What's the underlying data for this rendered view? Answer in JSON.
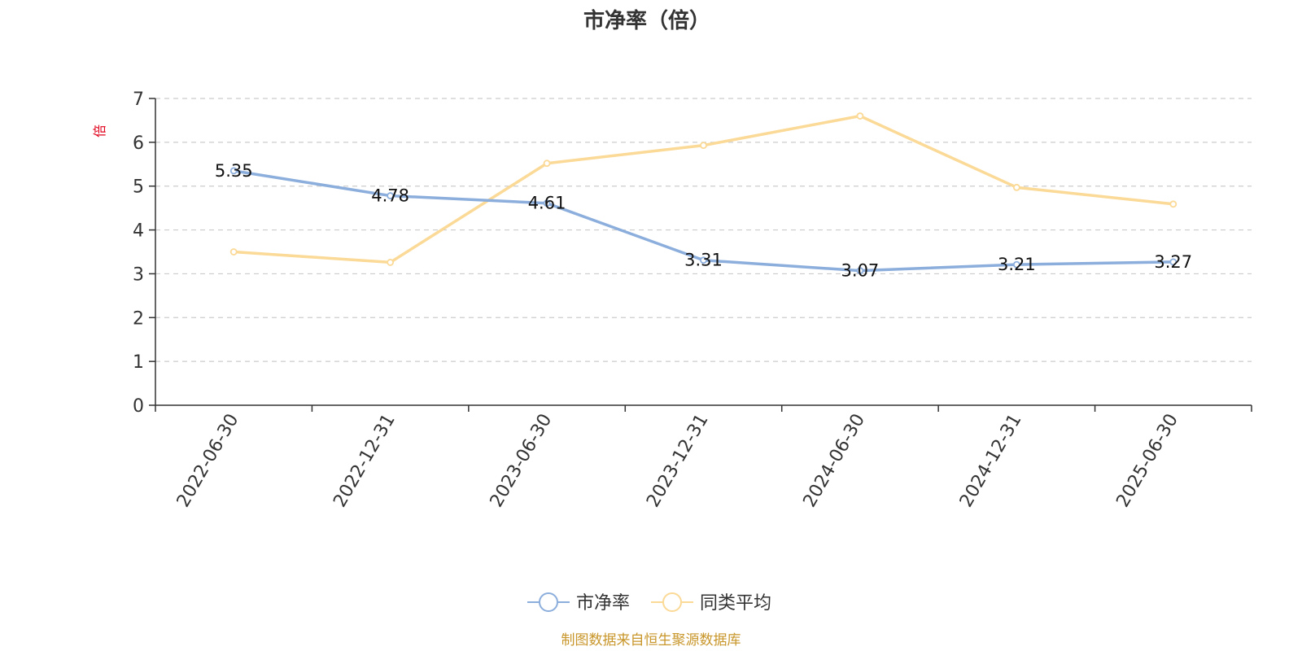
{
  "chart_data": {
    "type": "line",
    "title": "市净率（倍）",
    "ylabel": "倍",
    "xlabel": "",
    "categories": [
      "2022-06-30",
      "2022-12-31",
      "2023-06-30",
      "2023-12-31",
      "2024-06-30",
      "2024-12-31",
      "2025-06-30"
    ],
    "ylim": [
      0,
      7
    ],
    "yticks": [
      "0",
      "1",
      "2",
      "3",
      "4",
      "5",
      "6",
      "7"
    ],
    "grid": true,
    "legend_position": "bottom-center",
    "series": [
      {
        "name": "市净率",
        "color": "#8caedc",
        "values": [
          5.35,
          4.78,
          4.61,
          3.31,
          3.07,
          3.21,
          3.27
        ],
        "labels": [
          "5.35",
          "4.78",
          "4.61",
          "3.31",
          "3.07",
          "3.21",
          "3.27"
        ]
      },
      {
        "name": "同类平均",
        "color": "#fbd996",
        "values": [
          3.5,
          3.26,
          5.52,
          5.93,
          6.6,
          4.97,
          4.59
        ]
      }
    ],
    "source_note": "制图数据来自恒生聚源数据库"
  }
}
